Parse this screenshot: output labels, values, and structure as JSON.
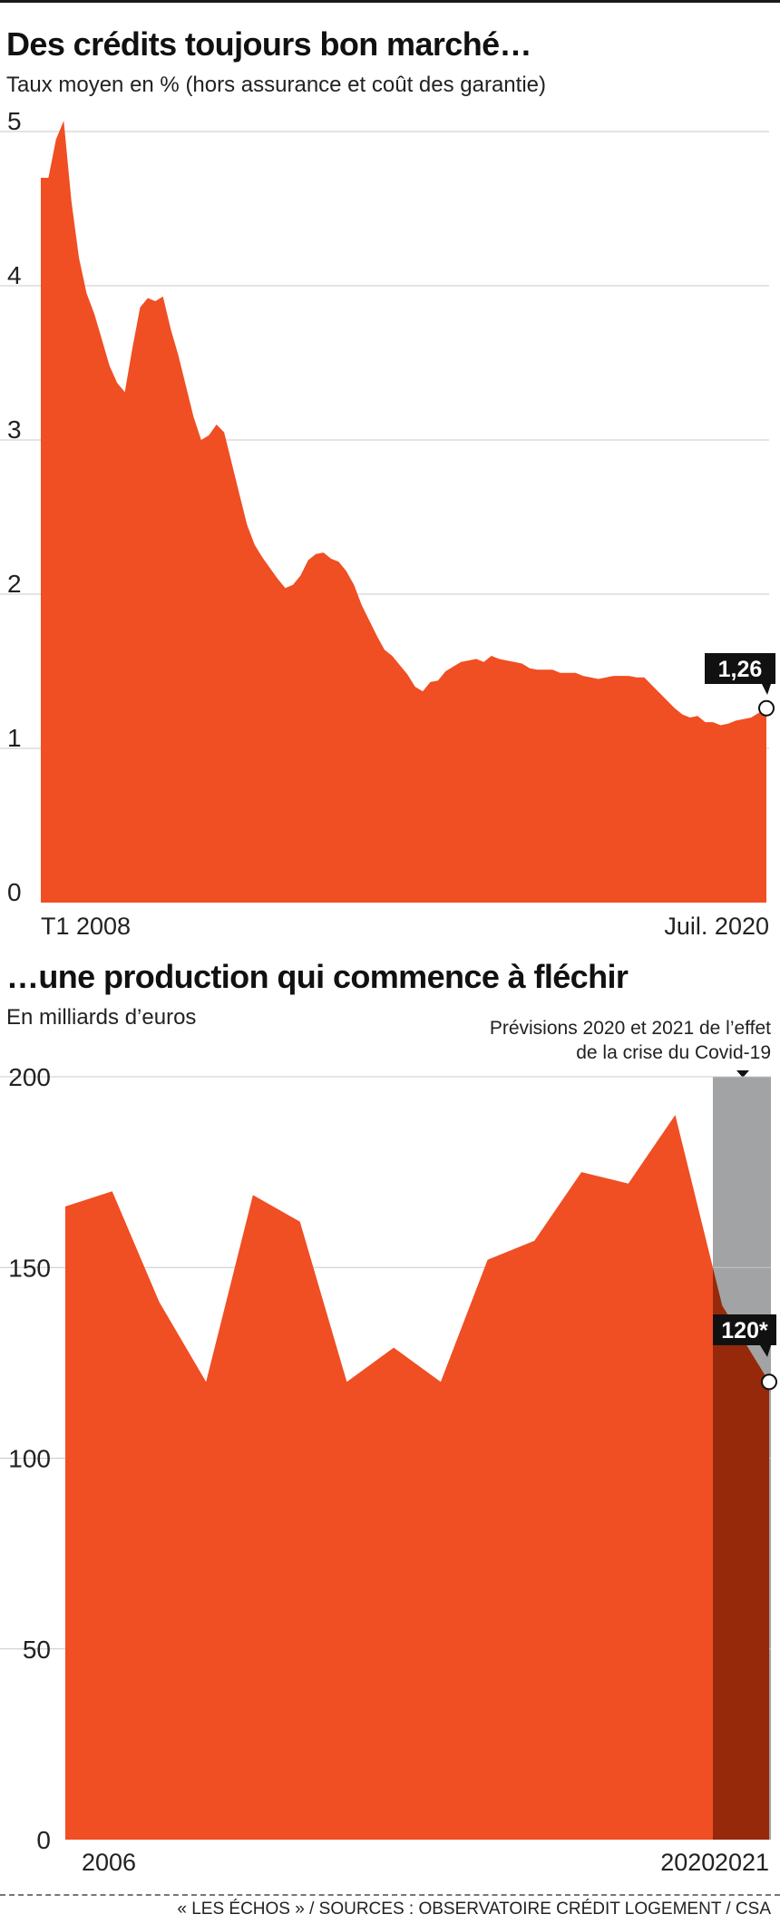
{
  "chart1_title": "Des crédits toujours bon marché…",
  "chart1_subtitle": "Taux moyen en % (hors assurance et coût des garantie)",
  "chart2_title": "…une production qui commence à fléchir",
  "chart2_subtitle": "En milliards d’euros",
  "chart2_note_line1": "Prévisions 2020 et 2021 de l’effet",
  "chart2_note_line2": "de la crise du Covid-19",
  "footer": "« LES ÉCHOS » / SOURCES : OBSERVATOIRE CRÉDIT LOGEMENT / CSA",
  "colors": {
    "area": "#f04e23",
    "forecast_area": "#97290b",
    "forecast_band": "#a2a3a5",
    "grid": "#c8c8c8",
    "callout": "#111111"
  },
  "chart_data": [
    {
      "type": "area",
      "x_start_label": "T1 2008",
      "x_end_label": "Juil. 2020",
      "y_ticks": [
        "0",
        "1",
        "2",
        "3",
        "4",
        "5"
      ],
      "ylim": [
        0,
        5
      ],
      "grid": true,
      "callout": {
        "label": "1,26",
        "value": 1.26
      },
      "values": [
        4.7,
        4.7,
        4.95,
        5.07,
        4.55,
        4.18,
        3.95,
        3.82,
        3.65,
        3.48,
        3.37,
        3.31,
        3.6,
        3.86,
        3.92,
        3.9,
        3.93,
        3.72,
        3.55,
        3.35,
        3.15,
        3.0,
        3.03,
        3.1,
        3.05,
        2.85,
        2.65,
        2.45,
        2.32,
        2.24,
        2.17,
        2.1,
        2.04,
        2.06,
        2.12,
        2.22,
        2.26,
        2.27,
        2.23,
        2.21,
        2.15,
        2.06,
        1.93,
        1.83,
        1.73,
        1.64,
        1.6,
        1.54,
        1.48,
        1.4,
        1.37,
        1.43,
        1.44,
        1.5,
        1.53,
        1.56,
        1.57,
        1.58,
        1.56,
        1.6,
        1.58,
        1.57,
        1.56,
        1.55,
        1.52,
        1.51,
        1.51,
        1.51,
        1.49,
        1.49,
        1.49,
        1.47,
        1.46,
        1.45,
        1.46,
        1.47,
        1.47,
        1.47,
        1.46,
        1.46,
        1.41,
        1.36,
        1.31,
        1.26,
        1.22,
        1.2,
        1.21,
        1.17,
        1.17,
        1.15,
        1.16,
        1.18,
        1.19,
        1.2,
        1.23,
        1.26
      ]
    },
    {
      "type": "area",
      "x_labels": [
        "2006",
        "2020",
        "2021"
      ],
      "categories": [
        "2006",
        "2007",
        "2008",
        "2009",
        "2010",
        "2011",
        "2012",
        "2013",
        "2014",
        "2015",
        "2016",
        "2017",
        "2018",
        "2019",
        "2020",
        "2021"
      ],
      "values": [
        166,
        170,
        141,
        120,
        169,
        162,
        120,
        129,
        120,
        152,
        157,
        175,
        172,
        190,
        140,
        120
      ],
      "forecast_from": "2020",
      "y_ticks": [
        "0",
        "50",
        "100",
        "150",
        "200"
      ],
      "ylim": [
        0,
        200
      ],
      "grid": true,
      "callout": {
        "label": "120*",
        "value": 120
      }
    }
  ]
}
